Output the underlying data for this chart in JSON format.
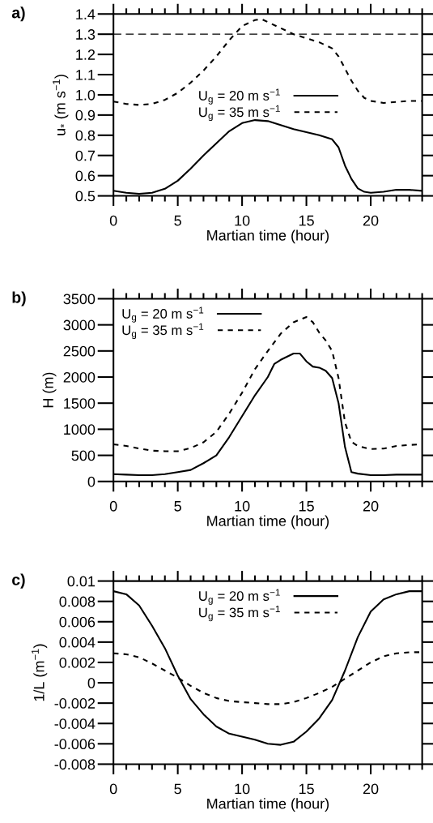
{
  "chart_data": [
    {
      "type": "line",
      "title": "a)",
      "xlabel": "Martian time (hour)",
      "ylabel": "u$_{*}$ (m s$^{−1}$)",
      "xlim": [
        0,
        24
      ],
      "xticks": [
        0,
        5,
        10,
        15,
        20
      ],
      "ylim": [
        0.5,
        1.4
      ],
      "yticks": [
        0.5,
        0.6,
        0.7,
        0.8,
        0.9,
        {
          "value": 1.0,
          "label": "1.0"
        },
        1.1,
        1.2,
        1.3,
        1.4
      ],
      "grid": false,
      "legend": "center",
      "ref_lines": [
        {
          "axis": "y",
          "value": 1.3,
          "color": "#000000",
          "line_style": "dashed"
        }
      ],
      "series": [
        {
          "name": "U$_{g}$ = 20 m s$^{−1}$",
          "color": "#000000",
          "line_style": "solid",
          "x": [
            0,
            1,
            2,
            3,
            4,
            5,
            6,
            7,
            8,
            9,
            10,
            11,
            12,
            13,
            14,
            15,
            16,
            17,
            17.5,
            18,
            18.5,
            19,
            19.5,
            20,
            21,
            22,
            23,
            24
          ],
          "values": [
            0.525,
            0.515,
            0.51,
            0.515,
            0.535,
            0.575,
            0.635,
            0.7,
            0.76,
            0.82,
            0.86,
            0.875,
            0.87,
            0.85,
            0.83,
            0.815,
            0.8,
            0.78,
            0.74,
            0.65,
            0.584,
            0.537,
            0.52,
            0.515,
            0.52,
            0.53,
            0.53,
            0.525
          ]
        },
        {
          "name": "U$_{g}$ = 35 m s$^{−1}$",
          "color": "#000000",
          "line_style": "dashed",
          "x": [
            0,
            1,
            2,
            3,
            4,
            5,
            6,
            7,
            8,
            9,
            10,
            11,
            11.5,
            12,
            13,
            14,
            15,
            16,
            17,
            17.5,
            18,
            18.5,
            19,
            19.5,
            20,
            21,
            22,
            23,
            24
          ],
          "values": [
            0.967,
            0.955,
            0.95,
            0.955,
            0.975,
            1.01,
            1.06,
            1.12,
            1.19,
            1.27,
            1.34,
            1.37,
            1.375,
            1.36,
            1.33,
            1.3,
            1.28,
            1.26,
            1.23,
            1.19,
            1.13,
            1.07,
            1.02,
            0.985,
            0.97,
            0.96,
            0.965,
            0.97,
            0.97
          ]
        }
      ]
    },
    {
      "type": "line",
      "title": "b)",
      "xlabel": "Martian time (hour)",
      "ylabel": "H (m)",
      "xlim": [
        0,
        24
      ],
      "xticks": [
        0,
        5,
        10,
        15,
        20
      ],
      "ylim": [
        0,
        3500
      ],
      "yticks": [
        0,
        500,
        1000,
        1500,
        2000,
        2500,
        3000,
        3500
      ],
      "grid": false,
      "legend": "top left",
      "series": [
        {
          "name": "U$_{g}$ = 20 m s$^{−1}$",
          "color": "#000000",
          "line_style": "solid",
          "x": [
            0,
            1,
            2,
            3,
            4,
            5,
            6,
            7,
            8,
            9,
            10,
            11,
            12,
            12.5,
            13,
            14,
            14.5,
            15,
            15.5,
            16,
            16.5,
            17,
            17.5,
            18,
            18.5,
            19,
            20,
            21,
            22,
            23,
            24
          ],
          "values": [
            140,
            130,
            120,
            120,
            140,
            180,
            220,
            350,
            500,
            850,
            1250,
            1650,
            2000,
            2250,
            2330,
            2450,
            2450,
            2300,
            2200,
            2180,
            2120,
            1980,
            1500,
            660,
            180,
            150,
            120,
            120,
            130,
            130,
            130
          ]
        },
        {
          "name": "U$_{g}$ = 35 m s$^{−1}$",
          "color": "#000000",
          "line_style": "dashed",
          "x": [
            0,
            1,
            2,
            3,
            4,
            5,
            6,
            7,
            8,
            9,
            10,
            11,
            12,
            13,
            14,
            15,
            15.5,
            16,
            16.5,
            17,
            17.5,
            18,
            18.5,
            19,
            20,
            21,
            22,
            23,
            24
          ],
          "values": [
            710,
            680,
            630,
            590,
            580,
            580,
            640,
            750,
            950,
            1300,
            1700,
            2150,
            2500,
            2830,
            3050,
            3150,
            3050,
            2850,
            2700,
            2500,
            1980,
            1130,
            760,
            680,
            620,
            630,
            680,
            700,
            710
          ]
        }
      ]
    },
    {
      "type": "line",
      "title": "c)",
      "xlabel": "Martian time (hour)",
      "ylabel": "1/L (m$^{−1}$)",
      "xlim": [
        0,
        24
      ],
      "xticks": [
        0,
        5,
        10,
        15,
        20
      ],
      "ylim": [
        -0.008,
        0.01
      ],
      "yticks": [
        -0.008,
        -0.006,
        -0.004,
        -0.002,
        0,
        0.002,
        0.004,
        0.006,
        0.008,
        0.01
      ],
      "grid": false,
      "legend": "top",
      "series": [
        {
          "name": "U$_{g}$ = 20 m s$^{−1}$",
          "color": "#000000",
          "line_style": "solid",
          "x": [
            0,
            1,
            2,
            3,
            4,
            5,
            6,
            7,
            8,
            9,
            10,
            11,
            12,
            13,
            14,
            15,
            16,
            17,
            18,
            19,
            20,
            21,
            22,
            23,
            24
          ],
          "values": [
            0.009,
            0.0087,
            0.0076,
            0.0056,
            0.0034,
            0.0007,
            -0.0016,
            -0.0031,
            -0.0043,
            -0.005,
            -0.0053,
            -0.0056,
            -0.006,
            -0.0061,
            -0.0058,
            -0.0048,
            -0.0035,
            -0.0017,
            0.0012,
            0.0045,
            0.007,
            0.0082,
            0.0087,
            0.009,
            0.009
          ]
        },
        {
          "name": "U$_{g}$ = 35 m s$^{−1}$",
          "color": "#000000",
          "line_style": "dashed",
          "x": [
            0,
            1,
            2,
            3,
            4,
            5,
            6,
            7,
            8,
            9,
            10,
            11,
            12,
            13,
            14,
            15,
            16,
            17,
            18,
            19,
            20,
            21,
            22,
            23,
            24
          ],
          "values": [
            0.0029,
            0.0028,
            0.0025,
            0.0019,
            0.0012,
            0.0005,
            -0.0003,
            -0.001,
            -0.0015,
            -0.0018,
            -0.0019,
            -0.002,
            -0.0021,
            -0.0021,
            -0.0019,
            -0.0015,
            -0.001,
            -0.0004,
            0.0004,
            0.0012,
            0.002,
            0.0026,
            0.0029,
            0.003,
            0.003
          ]
        }
      ]
    }
  ]
}
